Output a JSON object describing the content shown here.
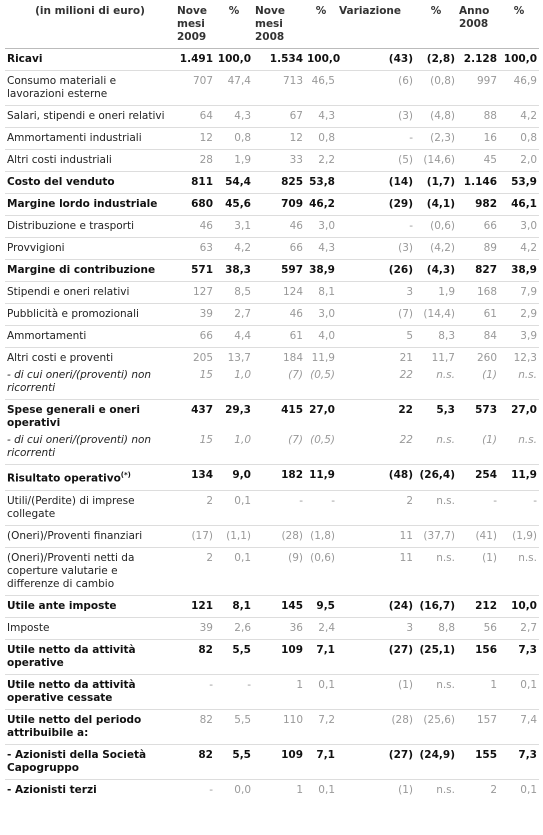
{
  "header": {
    "columns": [
      "(in milioni di euro)",
      "Nove mesi 2009",
      "%",
      "Nove mesi 2008",
      "%",
      "Variazione",
      "%",
      "Anno 2008",
      "%"
    ]
  },
  "table": {
    "rows": [
      {
        "label": "Ricavi",
        "bold_label": true,
        "bold_values": true,
        "cells": [
          "1.491",
          "100,0",
          "1.534",
          "100,0",
          "(43)",
          "(2,8)",
          "2.128",
          "100,0"
        ]
      },
      {
        "label": "Consumo materiali e lavorazioni esterne",
        "bold_label": false,
        "bold_values": false,
        "cells": [
          "707",
          "47,4",
          "713",
          "46,5",
          "(6)",
          "(0,8)",
          "997",
          "46,9"
        ]
      },
      {
        "label": "Salari, stipendi e oneri relativi",
        "bold_label": false,
        "bold_values": false,
        "cells": [
          "64",
          "4,3",
          "67",
          "4,3",
          "(3)",
          "(4,8)",
          "88",
          "4,2"
        ]
      },
      {
        "label": "Ammortamenti industriali",
        "bold_label": false,
        "bold_values": false,
        "cells": [
          "12",
          "0,8",
          "12",
          "0,8",
          "-",
          "(2,3)",
          "16",
          "0,8"
        ]
      },
      {
        "label": "Altri costi industriali",
        "bold_label": false,
        "bold_values": false,
        "cells": [
          "28",
          "1,9",
          "33",
          "2,2",
          "(5)",
          "(14,6)",
          "45",
          "2,0"
        ]
      },
      {
        "label": "Costo del venduto",
        "bold_label": true,
        "bold_values": true,
        "cells": [
          "811",
          "54,4",
          "825",
          "53,8",
          "(14)",
          "(1,7)",
          "1.146",
          "53,9"
        ]
      },
      {
        "label": "Margine lordo industriale",
        "bold_label": true,
        "bold_values": true,
        "cells": [
          "680",
          "45,6",
          "709",
          "46,2",
          "(29)",
          "(4,1)",
          "982",
          "46,1"
        ]
      },
      {
        "label": "Distribuzione e trasporti",
        "bold_label": false,
        "bold_values": false,
        "cells": [
          "46",
          "3,1",
          "46",
          "3,0",
          "-",
          "(0,6)",
          "66",
          "3,0"
        ]
      },
      {
        "label": "Provvigioni",
        "bold_label": false,
        "bold_values": false,
        "cells": [
          "63",
          "4,2",
          "66",
          "4,3",
          "(3)",
          "(4,2)",
          "89",
          "4,2"
        ]
      },
      {
        "label": "Margine di contribuzione",
        "bold_label": true,
        "bold_values": true,
        "cells": [
          "571",
          "38,3",
          "597",
          "38,9",
          "(26)",
          "(4,3)",
          "827",
          "38,9"
        ]
      },
      {
        "label": "Stipendi e oneri relativi",
        "bold_label": false,
        "bold_values": false,
        "cells": [
          "127",
          "8,5",
          "124",
          "8,1",
          "3",
          "1,9",
          "168",
          "7,9"
        ]
      },
      {
        "label": "Pubblicità e promozionali",
        "bold_label": false,
        "bold_values": false,
        "cells": [
          "39",
          "2,7",
          "46",
          "3,0",
          "(7)",
          "(14,4)",
          "61",
          "2,9"
        ]
      },
      {
        "label": "Ammortamenti",
        "bold_label": false,
        "bold_values": false,
        "cells": [
          "66",
          "4,4",
          "61",
          "4,0",
          "5",
          "8,3",
          "84",
          "3,9"
        ]
      },
      {
        "label": "Altri costi e proventi",
        "bold_label": false,
        "bold_values": false,
        "cells": [
          "205",
          "13,7",
          "184",
          "11,9",
          "21",
          "11,7",
          "260",
          "12,3"
        ],
        "sub": {
          "label": "- di cui oneri/(proventi) non ricorrenti",
          "cells": [
            "15",
            "1,0",
            "(7)",
            "(0,5)",
            "22",
            "n.s.",
            "(1)",
            "n.s."
          ]
        }
      },
      {
        "label": "Spese generali e oneri operativi",
        "bold_label": true,
        "bold_values": true,
        "cells": [
          "437",
          "29,3",
          "415",
          "27,0",
          "22",
          "5,3",
          "573",
          "27,0"
        ],
        "sub": {
          "label": "- di cui oneri/(proventi) non ricorrenti",
          "cells": [
            "15",
            "1,0",
            "(7)",
            "(0,5)",
            "22",
            "n.s.",
            "(1)",
            "n.s."
          ]
        }
      },
      {
        "label": "Risultato operativo",
        "note": "(*)",
        "bold_label": true,
        "bold_values": true,
        "cells": [
          "134",
          "9,0",
          "182",
          "11,9",
          "(48)",
          "(26,4)",
          "254",
          "11,9"
        ]
      },
      {
        "label": "Utili/(Perdite) di imprese collegate",
        "bold_label": false,
        "bold_values": false,
        "cells": [
          "2",
          "0,1",
          "-",
          "-",
          "2",
          "n.s.",
          "-",
          "-"
        ]
      },
      {
        "label": "(Oneri)/Proventi finanziari",
        "bold_label": false,
        "bold_values": false,
        "cells": [
          "(17)",
          "(1,1)",
          "(28)",
          "(1,8)",
          "11",
          "(37,7)",
          "(41)",
          "(1,9)"
        ]
      },
      {
        "label": "(Oneri)/Proventi netti da coperture valutarie e differenze di cambio",
        "bold_label": false,
        "bold_values": false,
        "cells": [
          "2",
          "0,1",
          "(9)",
          "(0,6)",
          "11",
          "n.s.",
          "(1)",
          "n.s."
        ]
      },
      {
        "label": "Utile ante imposte",
        "bold_label": true,
        "bold_values": true,
        "cells": [
          "121",
          "8,1",
          "145",
          "9,5",
          "(24)",
          "(16,7)",
          "212",
          "10,0"
        ]
      },
      {
        "label": "Imposte",
        "bold_label": false,
        "bold_values": false,
        "cells": [
          "39",
          "2,6",
          "36",
          "2,4",
          "3",
          "8,8",
          "56",
          "2,7"
        ]
      },
      {
        "label": "Utile netto da attività operative",
        "bold_label": true,
        "bold_values": true,
        "cells": [
          "82",
          "5,5",
          "109",
          "7,1",
          "(27)",
          "(25,1)",
          "156",
          "7,3"
        ]
      },
      {
        "label": "Utile netto da attività operative cessate",
        "bold_label": true,
        "bold_values": false,
        "cells": [
          "-",
          "-",
          "1",
          "0,1",
          "(1)",
          "n.s.",
          "1",
          "0,1"
        ]
      },
      {
        "label": "Utile netto del periodo attribuibile a:",
        "bold_label": true,
        "bold_values": false,
        "cells": [
          "82",
          "5,5",
          "110",
          "7,2",
          "(28)",
          "(25,6)",
          "157",
          "7,4"
        ]
      },
      {
        "label": "- Azionisti della Società Capogruppo",
        "bold_label": true,
        "bold_values": true,
        "cells": [
          "82",
          "5,5",
          "109",
          "7,1",
          "(27)",
          "(24,9)",
          "155",
          "7,3"
        ]
      },
      {
        "label": "- Azionisti terzi",
        "bold_label": true,
        "bold_values": false,
        "cells": [
          "-",
          "0,0",
          "1",
          "0,1",
          "(1)",
          "n.s.",
          "2",
          "0,1"
        ]
      }
    ]
  }
}
